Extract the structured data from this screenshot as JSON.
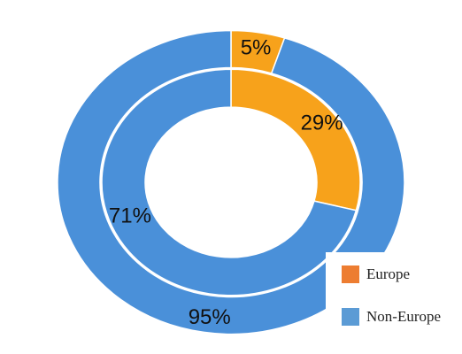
{
  "chart_data": {
    "type": "pie",
    "subtype": "nested-donut",
    "series": [
      {
        "ring": "outer",
        "slices": [
          {
            "category": "Europe",
            "value": 5,
            "label": "5%"
          },
          {
            "category": "Non-Europe",
            "value": 95,
            "label": "95%"
          }
        ]
      },
      {
        "ring": "inner",
        "slices": [
          {
            "category": "Europe",
            "value": 29,
            "label": "29%"
          },
          {
            "category": "Non-Europe",
            "value": 71,
            "label": "71%"
          }
        ]
      }
    ],
    "legend": {
      "placement": "bottom-right",
      "entries": [
        {
          "label": "Europe",
          "color": "#ED7D31"
        },
        {
          "label": "Non-Europe",
          "color": "#5B9BD5"
        }
      ]
    },
    "colors": {
      "Europe_slice": "#F7A21B",
      "Non-Europe_slice": "#4A90D9",
      "divider": "#ffffff"
    }
  }
}
